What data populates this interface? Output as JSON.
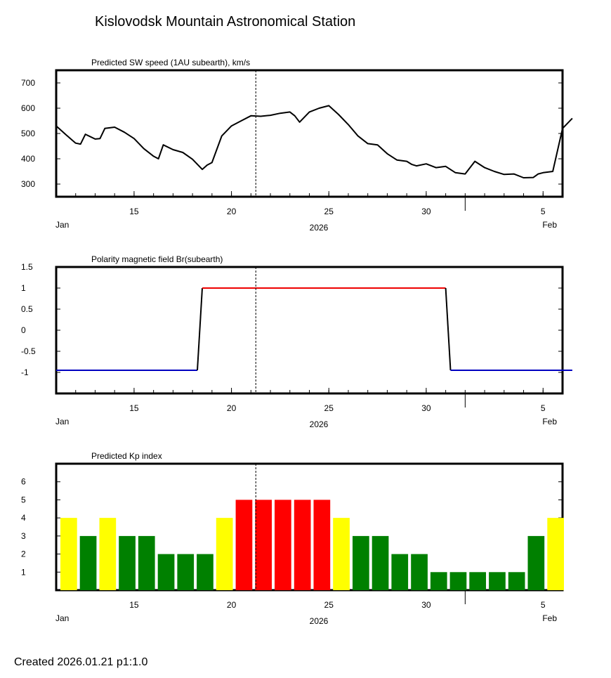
{
  "page": {
    "title": "Kislovodsk Mountain Astronomical Station",
    "footer": "Created  2026.01.21    p1:1.0"
  },
  "chart_data": [
    {
      "type": "line",
      "title": "Predicted SW speed (1AU subearth), km/s",
      "ylim": [
        250,
        750
      ],
      "yticks": [
        300,
        400,
        500,
        600,
        700
      ],
      "ytick_labels": [
        "300",
        "400",
        "500",
        "600",
        "700"
      ],
      "x_range_days": [
        "2026-01-11",
        "2026-02-06"
      ],
      "xticks": [
        {
          "date": "2026-01-15",
          "label": "15"
        },
        {
          "date": "2026-01-20",
          "label": "20"
        },
        {
          "date": "2026-01-25",
          "label": "25"
        },
        {
          "date": "2026-01-30",
          "label": "30"
        },
        {
          "date": "2026-02-05",
          "label": "5"
        }
      ],
      "month_labels": [
        "Jan",
        "Feb"
      ],
      "year_label": "2026",
      "current_date_marker": "2026-01-21T06:00",
      "series": [
        {
          "color": "#000000",
          "x": [
            "2026-01-11T00:00",
            "2026-01-11T12:00",
            "2026-01-12T00:00",
            "2026-01-12T06:00",
            "2026-01-12T12:00",
            "2026-01-13T00:00",
            "2026-01-13T06:00",
            "2026-01-13T12:00",
            "2026-01-14T00:00",
            "2026-01-14T12:00",
            "2026-01-15T00:00",
            "2026-01-15T12:00",
            "2026-01-16T00:00",
            "2026-01-16T06:00",
            "2026-01-16T12:00",
            "2026-01-17T00:00",
            "2026-01-17T12:00",
            "2026-01-18T00:00",
            "2026-01-18T12:00",
            "2026-01-18T18:00",
            "2026-01-19T00:00",
            "2026-01-19T12:00",
            "2026-01-20T00:00",
            "2026-01-20T12:00",
            "2026-01-21T00:00",
            "2026-01-21T12:00",
            "2026-01-22T00:00",
            "2026-01-22T12:00",
            "2026-01-23T00:00",
            "2026-01-23T06:00",
            "2026-01-23T12:00",
            "2026-01-24T00:00",
            "2026-01-24T12:00",
            "2026-01-25T00:00",
            "2026-01-25T12:00",
            "2026-01-26T00:00",
            "2026-01-26T12:00",
            "2026-01-27T00:00",
            "2026-01-27T12:00",
            "2026-01-28T00:00",
            "2026-01-28T12:00",
            "2026-01-29T00:00",
            "2026-01-29T06:00",
            "2026-01-29T12:00",
            "2026-01-30T00:00",
            "2026-01-30T12:00",
            "2026-01-31T00:00",
            "2026-01-31T12:00",
            "2026-02-01T00:00",
            "2026-02-01T12:00",
            "2026-02-02T00:00",
            "2026-02-02T12:00",
            "2026-02-03T00:00",
            "2026-02-03T12:00",
            "2026-02-04T00:00",
            "2026-02-04T12:00",
            "2026-02-04T18:00",
            "2026-02-05T00:00",
            "2026-02-05T12:00",
            "2026-02-06T00:00",
            "2026-02-06T12:00"
          ],
          "y": [
            530,
            495,
            462,
            458,
            497,
            478,
            480,
            520,
            525,
            505,
            480,
            440,
            410,
            400,
            455,
            436,
            425,
            398,
            358,
            375,
            385,
            490,
            530,
            550,
            570,
            568,
            572,
            580,
            585,
            570,
            545,
            585,
            600,
            610,
            575,
            535,
            490,
            460,
            455,
            420,
            395,
            390,
            378,
            372,
            380,
            365,
            370,
            345,
            340,
            390,
            365,
            350,
            338,
            340,
            325,
            326,
            340,
            345,
            350,
            520,
            560
          ]
        }
      ]
    },
    {
      "type": "line",
      "title": "Polarity magnetic field  Br(subearth)",
      "ylim": [
        -1.5,
        1.5
      ],
      "yticks": [
        -1,
        -0.5,
        0,
        0.5,
        1,
        1.5
      ],
      "ytick_labels": [
        "-1",
        "-0.5",
        "0",
        "0.5",
        "1",
        "1.5"
      ],
      "x_range_days": [
        "2026-01-11",
        "2026-02-06"
      ],
      "xticks": [
        {
          "date": "2026-01-15",
          "label": "15"
        },
        {
          "date": "2026-01-20",
          "label": "20"
        },
        {
          "date": "2026-01-25",
          "label": "25"
        },
        {
          "date": "2026-01-30",
          "label": "30"
        },
        {
          "date": "2026-02-05",
          "label": "5"
        }
      ],
      "month_labels": [
        "Jan",
        "Feb"
      ],
      "year_label": "2026",
      "current_date_marker": "2026-01-21T06:00",
      "series": [
        {
          "color": "#0000c0",
          "x": [
            "2026-01-11T00:00",
            "2026-01-18T06:00"
          ],
          "y": [
            -0.95,
            -0.95
          ]
        },
        {
          "color": "#000000",
          "x": [
            "2026-01-18T06:00",
            "2026-01-18T12:00"
          ],
          "y": [
            -0.95,
            1
          ]
        },
        {
          "color": "#ee0000",
          "x": [
            "2026-01-18T12:00",
            "2026-01-31T00:00"
          ],
          "y": [
            1,
            1
          ]
        },
        {
          "color": "#000000",
          "x": [
            "2026-01-31T00:00",
            "2026-01-31T06:00"
          ],
          "y": [
            1,
            -0.95
          ]
        },
        {
          "color": "#0000c0",
          "x": [
            "2026-01-31T06:00",
            "2026-02-06T12:00"
          ],
          "y": [
            -0.95,
            -0.95
          ]
        }
      ]
    },
    {
      "type": "bar",
      "title": "Predicted Kp index",
      "ylim": [
        0,
        7
      ],
      "yticks": [
        1,
        2,
        3,
        4,
        5,
        6
      ],
      "ytick_labels": [
        "1",
        "2",
        "3",
        "4",
        "5",
        "6"
      ],
      "x_range_days": [
        "2026-01-11",
        "2026-02-06"
      ],
      "xticks": [
        {
          "date": "2026-01-15",
          "label": "15"
        },
        {
          "date": "2026-01-20",
          "label": "20"
        },
        {
          "date": "2026-01-25",
          "label": "25"
        },
        {
          "date": "2026-01-30",
          "label": "30"
        },
        {
          "date": "2026-02-05",
          "label": "5"
        }
      ],
      "month_labels": [
        "Jan",
        "Feb"
      ],
      "year_label": "2026",
      "current_date_marker": "2026-01-21T06:00",
      "categories": [
        "2026-01-11",
        "2026-01-12",
        "2026-01-13",
        "2026-01-14",
        "2026-01-15",
        "2026-01-16",
        "2026-01-17",
        "2026-01-18",
        "2026-01-19",
        "2026-01-20",
        "2026-01-21",
        "2026-01-22",
        "2026-01-23",
        "2026-01-24",
        "2026-01-25",
        "2026-01-26",
        "2026-01-27",
        "2026-01-28",
        "2026-01-29",
        "2026-01-30",
        "2026-01-31",
        "2026-02-01",
        "2026-02-02",
        "2026-02-03",
        "2026-02-04",
        "2026-02-05"
      ],
      "values": [
        4,
        3,
        4,
        3,
        3,
        2,
        2,
        2,
        4,
        5,
        5,
        5,
        5,
        5,
        4,
        3,
        3,
        2,
        2,
        1,
        1,
        1,
        1,
        1,
        3,
        4
      ],
      "colors": {
        "1": "#008000",
        "2": "#008000",
        "3": "#008000",
        "4": "#ffff00",
        "5": "#ff0000"
      }
    }
  ]
}
